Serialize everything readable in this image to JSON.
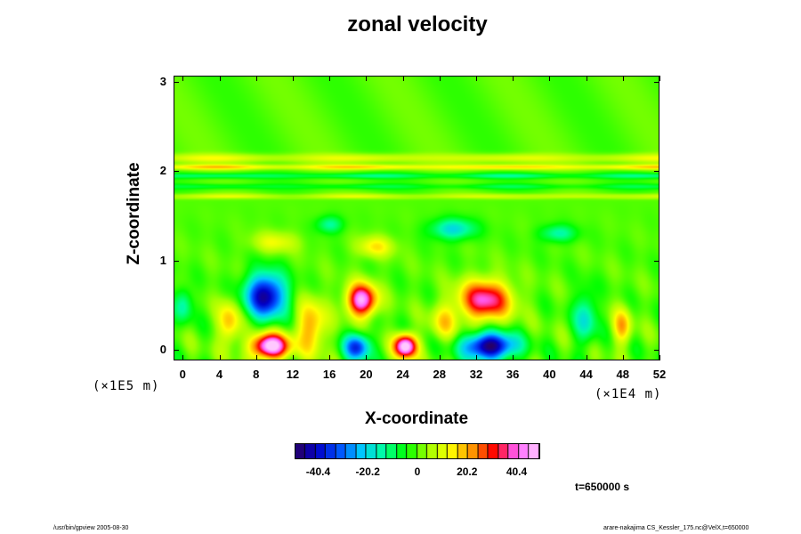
{
  "chart_data": {
    "type": "heatmap",
    "title": "zonal velocity",
    "xlabel": "X-coordinate",
    "ylabel": "Z-coordinate",
    "x_scale_note": "(×1E4 m)",
    "y_scale_note": "(×1E5 m)",
    "xlim": [
      -1,
      52
    ],
    "ylim": [
      -0.12,
      3.07
    ],
    "x_ticks": [
      "0",
      "4",
      "8",
      "12",
      "16",
      "20",
      "24",
      "28",
      "32",
      "36",
      "40",
      "44",
      "48",
      "52"
    ],
    "y_ticks": [
      "0",
      "1",
      "2",
      "3"
    ],
    "colorbar": {
      "ticks": [
        "-40.4",
        "-20.2",
        "0",
        "20.2",
        "40.4"
      ],
      "range": [
        -50,
        50
      ],
      "colors": [
        "#2a0060",
        "#0000c8",
        "#0050ff",
        "#00c8ff",
        "#00ffa0",
        "#00ff00",
        "#a0ff00",
        "#ffff00",
        "#ff9600",
        "#ff0000",
        "#ff60ff",
        "#ffc8ff"
      ]
    },
    "features": [
      {
        "x": 9,
        "z": 0.6,
        "value": -45,
        "sx": 2.2,
        "sz": 0.25
      },
      {
        "x": 19.5,
        "z": 0.55,
        "value": 48,
        "sx": 1.6,
        "sz": 0.18
      },
      {
        "x": 33,
        "z": 0.55,
        "value": 40,
        "sx": 2.8,
        "sz": 0.22
      },
      {
        "x": 9.5,
        "z": 0.03,
        "value": 55,
        "sx": 2.0,
        "sz": 0.14
      },
      {
        "x": 24.3,
        "z": 0.03,
        "value": 55,
        "sx": 1.2,
        "sz": 0.13
      },
      {
        "x": 33.5,
        "z": 0.03,
        "value": -50,
        "sx": 2.8,
        "sz": 0.15
      },
      {
        "x": 19,
        "z": 0.02,
        "value": -35,
        "sx": 1.4,
        "sz": 0.15
      },
      {
        "x": 14,
        "z": 0.25,
        "value": 22,
        "sx": 1.6,
        "sz": 0.3
      },
      {
        "x": 5,
        "z": 0.3,
        "value": 20,
        "sx": 1.2,
        "sz": 0.25
      },
      {
        "x": 28.5,
        "z": 0.3,
        "value": 15,
        "sx": 1.5,
        "sz": 0.2
      },
      {
        "x": 44,
        "z": 0.35,
        "value": -18,
        "sx": 1.2,
        "sz": 0.3
      },
      {
        "x": 48,
        "z": 0.25,
        "value": 20,
        "sx": 1.0,
        "sz": 0.2
      },
      {
        "x": 29.5,
        "z": 1.35,
        "value": -20,
        "sx": 2.5,
        "sz": 0.12
      },
      {
        "x": 41,
        "z": 1.3,
        "value": -15,
        "sx": 2.0,
        "sz": 0.1
      },
      {
        "x": 16,
        "z": 1.4,
        "value": -14,
        "sx": 1.5,
        "sz": 0.1
      },
      {
        "x": 21,
        "z": 1.15,
        "value": 15,
        "sx": 2.0,
        "sz": 0.12
      },
      {
        "x": 10,
        "z": 1.2,
        "value": 12,
        "sx": 2.5,
        "sz": 0.12
      },
      {
        "x": 0,
        "z": 0.5,
        "value": -15,
        "sx": 1.0,
        "sz": 0.2
      }
    ],
    "bands": [
      {
        "z": 2.15,
        "value": 12,
        "width": 0.05
      },
      {
        "z": 2.05,
        "value": 18,
        "width": 0.03
      },
      {
        "z": 1.95,
        "value": -12,
        "width": 0.03
      },
      {
        "z": 1.83,
        "value": -8,
        "width": 0.03
      },
      {
        "z": 1.72,
        "value": 10,
        "width": 0.03
      }
    ]
  },
  "time_label": "t=650000 s",
  "footer_left": "/usr/bin/gpview 2005-08-30",
  "footer_right": "arare-nakajima CS_Kessler_175.nc@VelX,t=650000"
}
